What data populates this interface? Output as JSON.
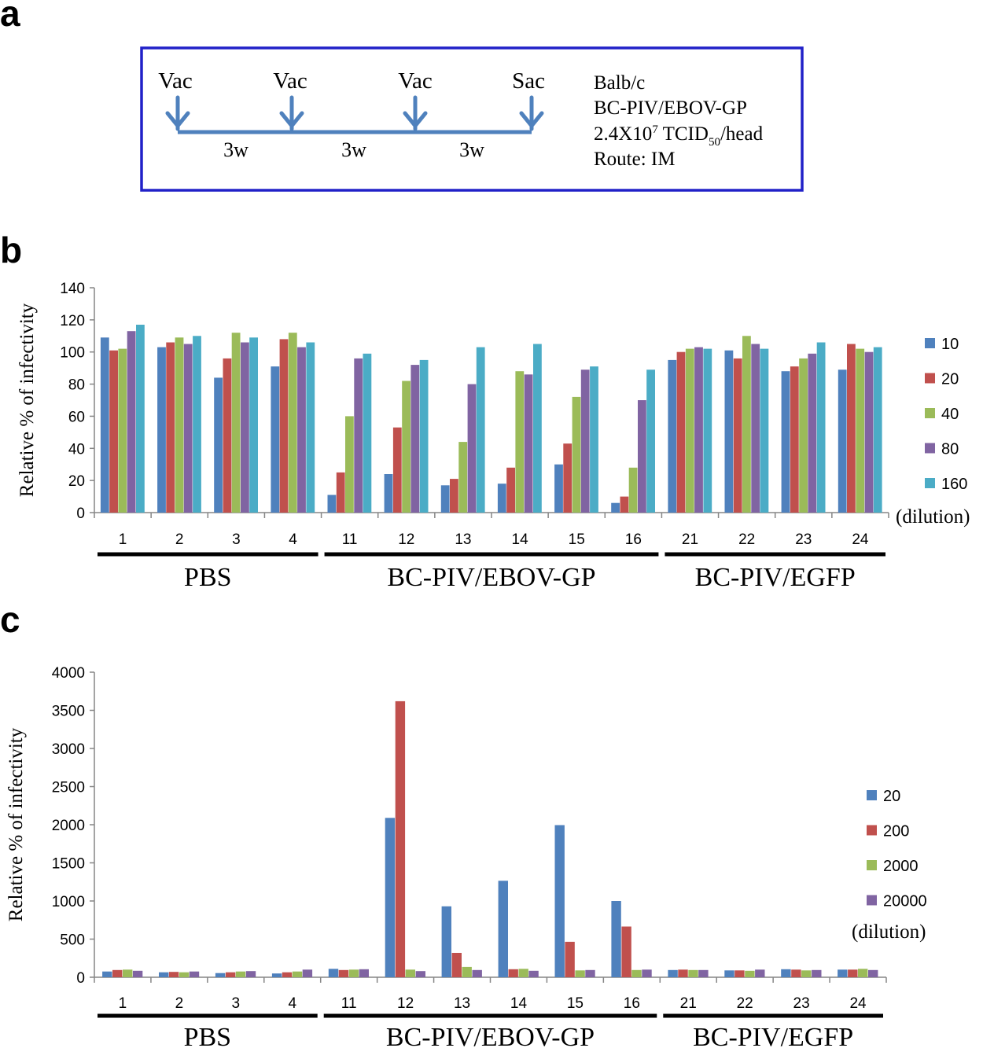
{
  "panel_a": {
    "letter": "a",
    "events": [
      "Vac",
      "Vac",
      "Vac",
      "Sac"
    ],
    "intervals": [
      "3w",
      "3w",
      "3w"
    ],
    "info": {
      "strain": "Balb/c",
      "vaccine": "BC-PIV/EBOV-GP",
      "dose_prefix": "2.4X10",
      "dose_exp": "7",
      "dose_unit": " TCID",
      "dose_sub": "50",
      "dose_suffix": "/head",
      "route": "Route: IM"
    },
    "colors": {
      "frame": "#2121c8",
      "timeline": "#4f81bd"
    }
  },
  "chart_data": [
    {
      "panel": "b",
      "type": "bar",
      "ylabel": "Relative % of infectivity",
      "ylim": [
        0,
        140
      ],
      "yticks": [
        "0",
        "20",
        "40",
        "60",
        "80",
        "100",
        "120",
        "140"
      ],
      "categories": [
        "1",
        "2",
        "3",
        "4",
        "11",
        "12",
        "13",
        "14",
        "15",
        "16",
        "21",
        "22",
        "23",
        "24"
      ],
      "groups": [
        {
          "label": "PBS",
          "from": 0,
          "to": 3
        },
        {
          "label": "BC-PIV/EBOV-GP",
          "from": 4,
          "to": 9
        },
        {
          "label": "BC-PIV/EGFP",
          "from": 10,
          "to": 13
        }
      ],
      "legend_note": "(dilution)",
      "series": [
        {
          "name": "10",
          "color": "#4f81bd",
          "values": [
            109,
            103,
            84,
            91,
            11,
            24,
            17,
            18,
            30,
            6,
            95,
            101,
            88,
            89
          ]
        },
        {
          "name": "20",
          "color": "#c0504d",
          "values": [
            101,
            106,
            96,
            108,
            25,
            53,
            21,
            28,
            43,
            10,
            100,
            96,
            91,
            105
          ]
        },
        {
          "name": "40",
          "color": "#9bbb59",
          "values": [
            102,
            109,
            112,
            112,
            60,
            82,
            44,
            88,
            72,
            28,
            102,
            110,
            96,
            102
          ]
        },
        {
          "name": "80",
          "color": "#8064a2",
          "values": [
            113,
            105,
            106,
            103,
            96,
            92,
            80,
            86,
            89,
            70,
            103,
            105,
            99,
            100
          ]
        },
        {
          "name": "160",
          "color": "#4bacc6",
          "values": [
            117,
            110,
            109,
            106,
            99,
            95,
            103,
            105,
            91,
            89,
            102,
            102,
            106,
            103
          ]
        }
      ]
    },
    {
      "panel": "c",
      "type": "bar",
      "ylabel": "Relative % of infectivity",
      "ylim": [
        0,
        4000
      ],
      "yticks": [
        "0",
        "500",
        "1000",
        "1500",
        "2000",
        "2500",
        "3000",
        "3500",
        "4000"
      ],
      "categories": [
        "1",
        "2",
        "3",
        "4",
        "11",
        "12",
        "13",
        "14",
        "15",
        "16",
        "21",
        "22",
        "23",
        "24"
      ],
      "groups": [
        {
          "label": "PBS",
          "from": 0,
          "to": 3
        },
        {
          "label": "BC-PIV/EBOV-GP",
          "from": 4,
          "to": 9
        },
        {
          "label": "BC-PIV/EGFP",
          "from": 10,
          "to": 13
        }
      ],
      "legend_note": "(dilution)",
      "series": [
        {
          "name": "20",
          "color": "#4f81bd",
          "values": [
            75,
            65,
            55,
            50,
            110,
            2090,
            930,
            1265,
            1995,
            1000,
            95,
            90,
            105,
            100
          ]
        },
        {
          "name": "200",
          "color": "#c0504d",
          "values": [
            95,
            70,
            65,
            65,
            95,
            3620,
            320,
            105,
            465,
            665,
            100,
            90,
            100,
            100
          ]
        },
        {
          "name": "2000",
          "color": "#9bbb59",
          "values": [
            100,
            65,
            75,
            75,
            100,
            100,
            135,
            110,
            90,
            95,
            95,
            85,
            90,
            110
          ]
        },
        {
          "name": "20000",
          "color": "#8064a2",
          "values": [
            85,
            75,
            80,
            100,
            105,
            80,
            95,
            85,
            95,
            100,
            95,
            100,
            95,
            95
          ]
        }
      ]
    }
  ]
}
